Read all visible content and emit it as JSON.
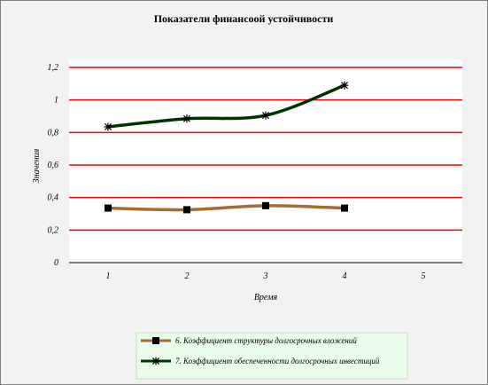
{
  "chart_data": {
    "type": "line",
    "title": "Показатели финансоой устойчивости",
    "xlabel": "Время",
    "ylabel": "Значения",
    "x": [
      1,
      2,
      3,
      4,
      5
    ],
    "x_tick_labels": [
      "1",
      "2",
      "3",
      "4",
      "5"
    ],
    "y_tick_labels": [
      "0",
      "0,2",
      "0,4",
      "0,6",
      "0,8",
      "1",
      "1,2"
    ],
    "y_ticks": [
      0,
      0.2,
      0.4,
      0.6,
      0.8,
      1.0,
      1.2
    ],
    "ylim": [
      0,
      1.2
    ],
    "grid": true,
    "grid_color": "#ff0000",
    "plot_background": "#ffffff",
    "background": "#f2f2f2",
    "legend_background": "#e9fbe9",
    "legend_position": "bottom",
    "series": [
      {
        "name": "6. Коэффициент структуры долгосрочных вложений",
        "color": "#a86b32",
        "marker": "square",
        "x": [
          1,
          2,
          3,
          4
        ],
        "values": [
          0.335,
          0.325,
          0.35,
          0.335
        ]
      },
      {
        "name": "7. Коэффициент обеспеченности долгосрочных инвестиций",
        "color": "#003300",
        "marker": "asterisk",
        "x": [
          1,
          2,
          3,
          4
        ],
        "values": [
          0.835,
          0.885,
          0.905,
          1.09
        ]
      }
    ]
  }
}
